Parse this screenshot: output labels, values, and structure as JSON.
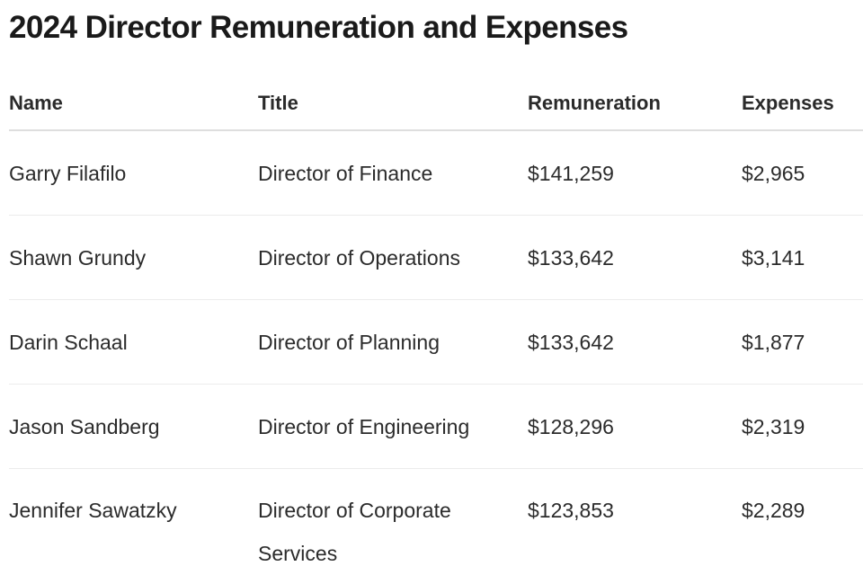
{
  "page": {
    "title": "2024 Director Remuneration and Expenses"
  },
  "table": {
    "headers": {
      "name": "Name",
      "title": "Title",
      "remuneration": "Remuneration",
      "expenses": "Expenses"
    },
    "rows": [
      {
        "name": "Garry Filafilo",
        "title": "Director of Finance",
        "remuneration": "$141,259",
        "expenses": "$2,965"
      },
      {
        "name": "Shawn Grundy",
        "title": "Director of Operations",
        "remuneration": "$133,642",
        "expenses": "$3,141"
      },
      {
        "name": "Darin Schaal",
        "title": "Director of Planning",
        "remuneration": "$133,642",
        "expenses": "$1,877"
      },
      {
        "name": "Jason Sandberg",
        "title": "Director of Engineering",
        "remuneration": "$128,296",
        "expenses": "$2,319"
      },
      {
        "name": "Jennifer Sawatzky",
        "title": "Director of Corporate Services",
        "remuneration": "$123,853",
        "expenses": "$2,289"
      }
    ]
  }
}
